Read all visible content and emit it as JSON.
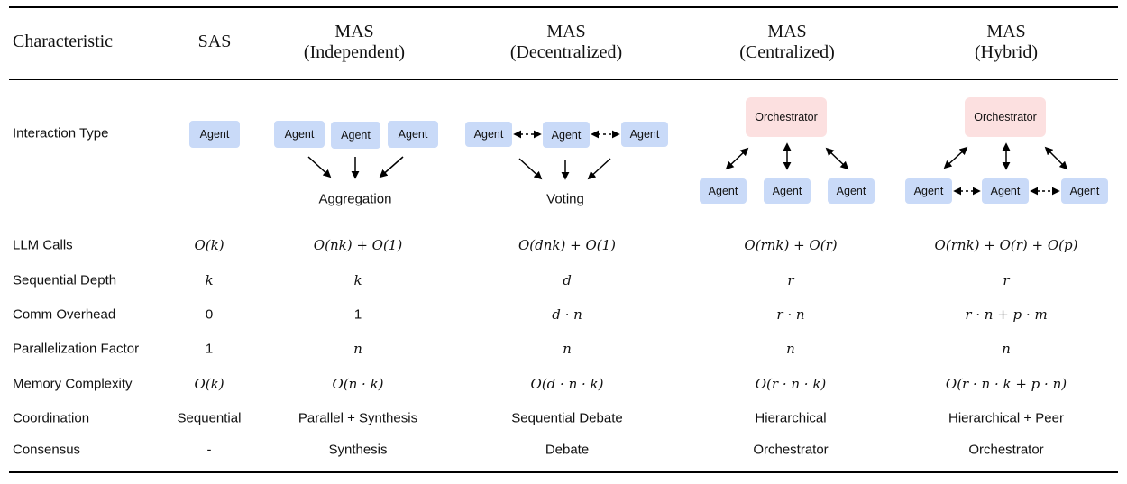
{
  "headers": {
    "characteristic": "Characteristic",
    "sas": "SAS",
    "independent": [
      "MAS",
      "(Independent)"
    ],
    "decentralized": [
      "MAS",
      "(Decentralized)"
    ],
    "centralized": [
      "MAS",
      "(Centralized)"
    ],
    "hybrid": [
      "MAS",
      "(Hybrid)"
    ]
  },
  "interaction": {
    "label": "Interaction Type",
    "agent": "Agent",
    "orchestrator": "Orchestrator",
    "aggregation": "Aggregation",
    "voting": "Voting"
  },
  "rows": [
    {
      "label": "LLM Calls",
      "math": true,
      "cells": [
        "O(k)",
        "O(nk) + O(1)",
        "O(dnk) + O(1)",
        "O(rnk) + O(r)",
        "O(rnk) + O(r) + O(p)"
      ]
    },
    {
      "label": "Sequential Depth",
      "math": true,
      "cells": [
        "k",
        "k",
        "d",
        "r",
        "r"
      ]
    },
    {
      "label": "Comm Overhead",
      "math": true,
      "cells": [
        "0",
        "1",
        "d · n",
        "r · n",
        "r · n + p · m"
      ]
    },
    {
      "label": "Parallelization Factor",
      "math": true,
      "cells": [
        "1",
        "n",
        "n",
        "n",
        "n"
      ]
    },
    {
      "label": "Memory Complexity",
      "math": true,
      "cells": [
        "O(k)",
        "O(n · k)",
        "O(d · n · k)",
        "O(r · n · k)",
        "O(r · n · k + p · n)"
      ]
    },
    {
      "label": "Coordination",
      "math": false,
      "cells": [
        "Sequential",
        "Parallel + Synthesis",
        "Sequential Debate",
        "Hierarchical",
        "Hierarchical + Peer"
      ]
    },
    {
      "label": "Consensus",
      "math": false,
      "cells": [
        "-",
        "Synthesis",
        "Debate",
        "Orchestrator",
        "Orchestrator"
      ]
    }
  ],
  "colors": {
    "agent": "#c9daf8",
    "orchestrator": "#fce0e0"
  }
}
